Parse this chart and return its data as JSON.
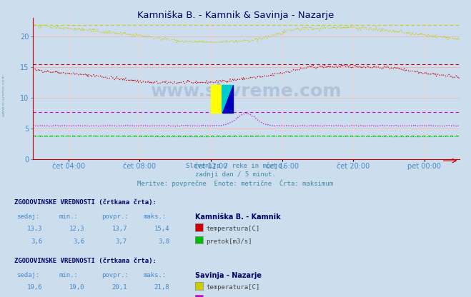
{
  "title": "Kamniška B. - Kamnik & Savinja - Nazarje",
  "background_color": "#ccddeeff",
  "plot_bg_color": "#ccddeeff",
  "subtitle_lines": [
    "Slovenija / reke in morje.",
    "zadnji dan / 5 minut.",
    "Meritve: povprečne  Enote: metrične  Črta: maksimum"
  ],
  "x_tick_labels": [
    "čet 04:00",
    "čet 08:00",
    "čet 12:00",
    "čet 16:00",
    "čet 20:00",
    "pet 00:00"
  ],
  "x_tick_positions": [
    48,
    144,
    240,
    336,
    432,
    528
  ],
  "y_ticks": [
    0,
    5,
    10,
    15,
    20
  ],
  "y_max": 23,
  "y_min": 0,
  "n_points": 576,
  "kamnik_temp_sedaj": 13.3,
  "kamnik_temp_min": 12.3,
  "kamnik_temp_povpr": 13.7,
  "kamnik_temp_maks": 15.4,
  "kamnik_pretok_sedaj": 3.6,
  "kamnik_pretok_min": 3.6,
  "kamnik_pretok_povpr": 3.7,
  "kamnik_pretok_maks": 3.8,
  "nazarje_temp_sedaj": 19.6,
  "nazarje_temp_min": 19.0,
  "nazarje_temp_povpr": 20.1,
  "nazarje_temp_maks": 21.8,
  "nazarje_pretok_sedaj": 5.4,
  "nazarje_pretok_min": 5.1,
  "nazarje_pretok_povpr": 5.5,
  "nazarje_pretok_maks": 7.6,
  "color_kamnik_temp": "#cc0000",
  "color_kamnik_pretok": "#00bb00",
  "color_nazarje_temp": "#cccc00",
  "color_nazarje_pretok": "#cc00cc",
  "color_grid_h": "#ffaaaa",
  "color_grid_v": "#ffcccc",
  "color_axis": "#cc0000",
  "watermark": "www.si-vreme.com",
  "font_color_label": "#4488cc",
  "font_color_bold": "#000066",
  "logo_colors": [
    "#ffff00",
    "#00cccc",
    "#0000cc"
  ],
  "left_label": "www.si-vreme.com"
}
